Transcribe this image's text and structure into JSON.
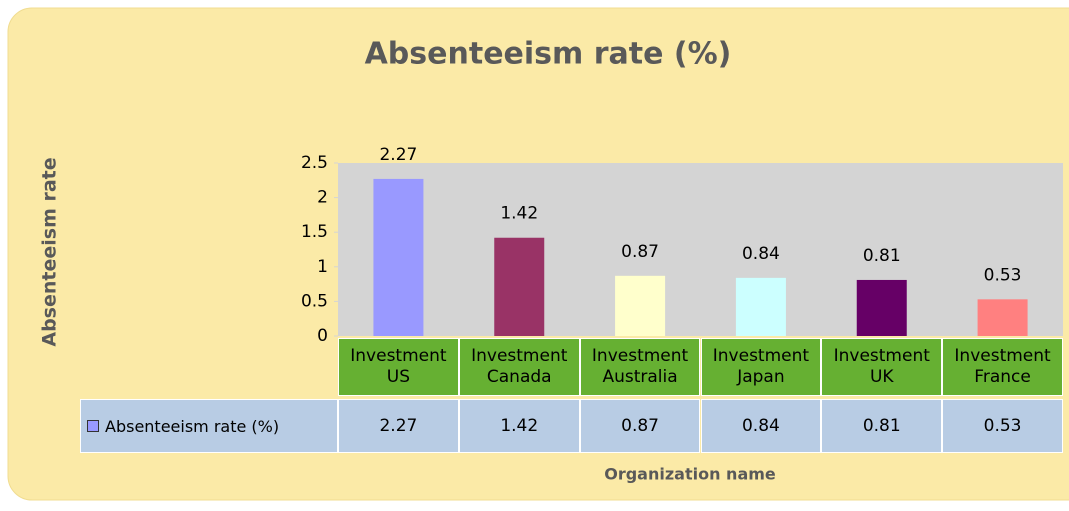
{
  "chart_data": {
    "type": "bar",
    "title": "Absenteeism rate (%)",
    "y_label": "Absenteeism rate",
    "x_label": "Organization name",
    "categories": [
      "Investment US",
      "Investment Canada",
      "Investment Australia",
      "Investment Japan",
      "Investment UK",
      "Investment France"
    ],
    "series": [
      {
        "name": "Absenteeism rate (%)",
        "colors": [
          "#9999ff",
          "#993366",
          "#ffffcc",
          "#ccffff",
          "#660066",
          "#ff8080"
        ],
        "values": [
          2.27,
          1.42,
          0.87,
          0.84,
          0.81,
          0.53
        ]
      }
    ],
    "ylim": [
      0,
      2.5
    ],
    "yticks": [
      0,
      0.5,
      1,
      1.5,
      2,
      2.5
    ]
  }
}
